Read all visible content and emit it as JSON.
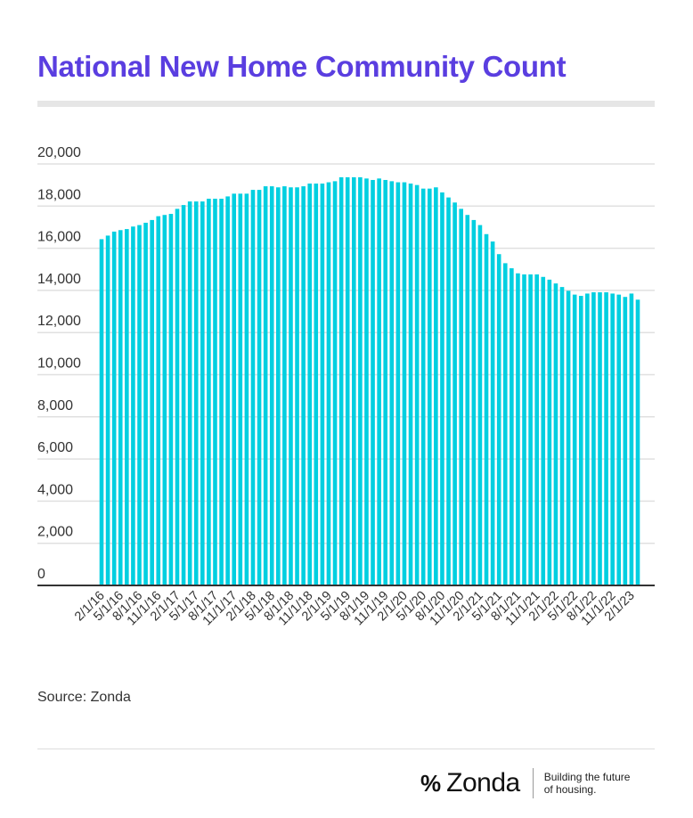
{
  "title": "National New Home Community Count",
  "source": "Source: Zonda",
  "brand": {
    "name": "Zonda",
    "tagline": "Building the future of housing."
  },
  "colors": {
    "title": "#5a3ee0",
    "bar": "#00cfe0",
    "axis": "#333333",
    "grid": "#e0e0e0"
  },
  "chart_data": {
    "type": "bar",
    "title": "National New Home Community Count",
    "xlabel": "",
    "ylabel": "",
    "ylim": [
      0,
      20000
    ],
    "yticks": [
      "0",
      "2,000",
      "4,000",
      "6,000",
      "8,000",
      "10,000",
      "12,000",
      "14,000",
      "16,000",
      "18,000",
      "20,000"
    ],
    "grid": true,
    "start_month": "2/1/16",
    "label_every": 3,
    "xtick_labels": [
      "2/1/16",
      "5/1/16",
      "8/1/16",
      "11/1/16",
      "2/1/17",
      "5/1/17",
      "8/1/17",
      "11/1/17",
      "2/1/18",
      "5/1/18",
      "8/1/18",
      "11/1/18",
      "2/1/19",
      "5/1/19",
      "8/1/19",
      "11/1/19",
      "2/1/20",
      "5/1/20",
      "8/1/20",
      "11/1/20",
      "2/1/21",
      "5/1/21",
      "8/1/21",
      "11/1/21",
      "2/1/22",
      "5/1/22",
      "8/1/22",
      "11/1/22",
      "2/1/23"
    ],
    "values": [
      16430,
      16600,
      16790,
      16860,
      16910,
      17030,
      17100,
      17210,
      17340,
      17520,
      17580,
      17630,
      17870,
      18050,
      18220,
      18220,
      18220,
      18350,
      18350,
      18350,
      18460,
      18590,
      18590,
      18590,
      18770,
      18770,
      18940,
      18940,
      18890,
      18940,
      18890,
      18890,
      18940,
      19070,
      19070,
      19070,
      19130,
      19180,
      19370,
      19370,
      19370,
      19370,
      19310,
      19240,
      19310,
      19240,
      19180,
      19130,
      19130,
      19070,
      19000,
      18830,
      18830,
      18890,
      18650,
      18410,
      18170,
      17870,
      17580,
      17340,
      17100,
      16670,
      16320,
      15720,
      15290,
      15050,
      14810,
      14760,
      14760,
      14760,
      14640,
      14510,
      14330,
      14160,
      13980,
      13800,
      13740,
      13850,
      13910,
      13910,
      13910,
      13850,
      13800,
      13690,
      13850,
      13560
    ]
  }
}
